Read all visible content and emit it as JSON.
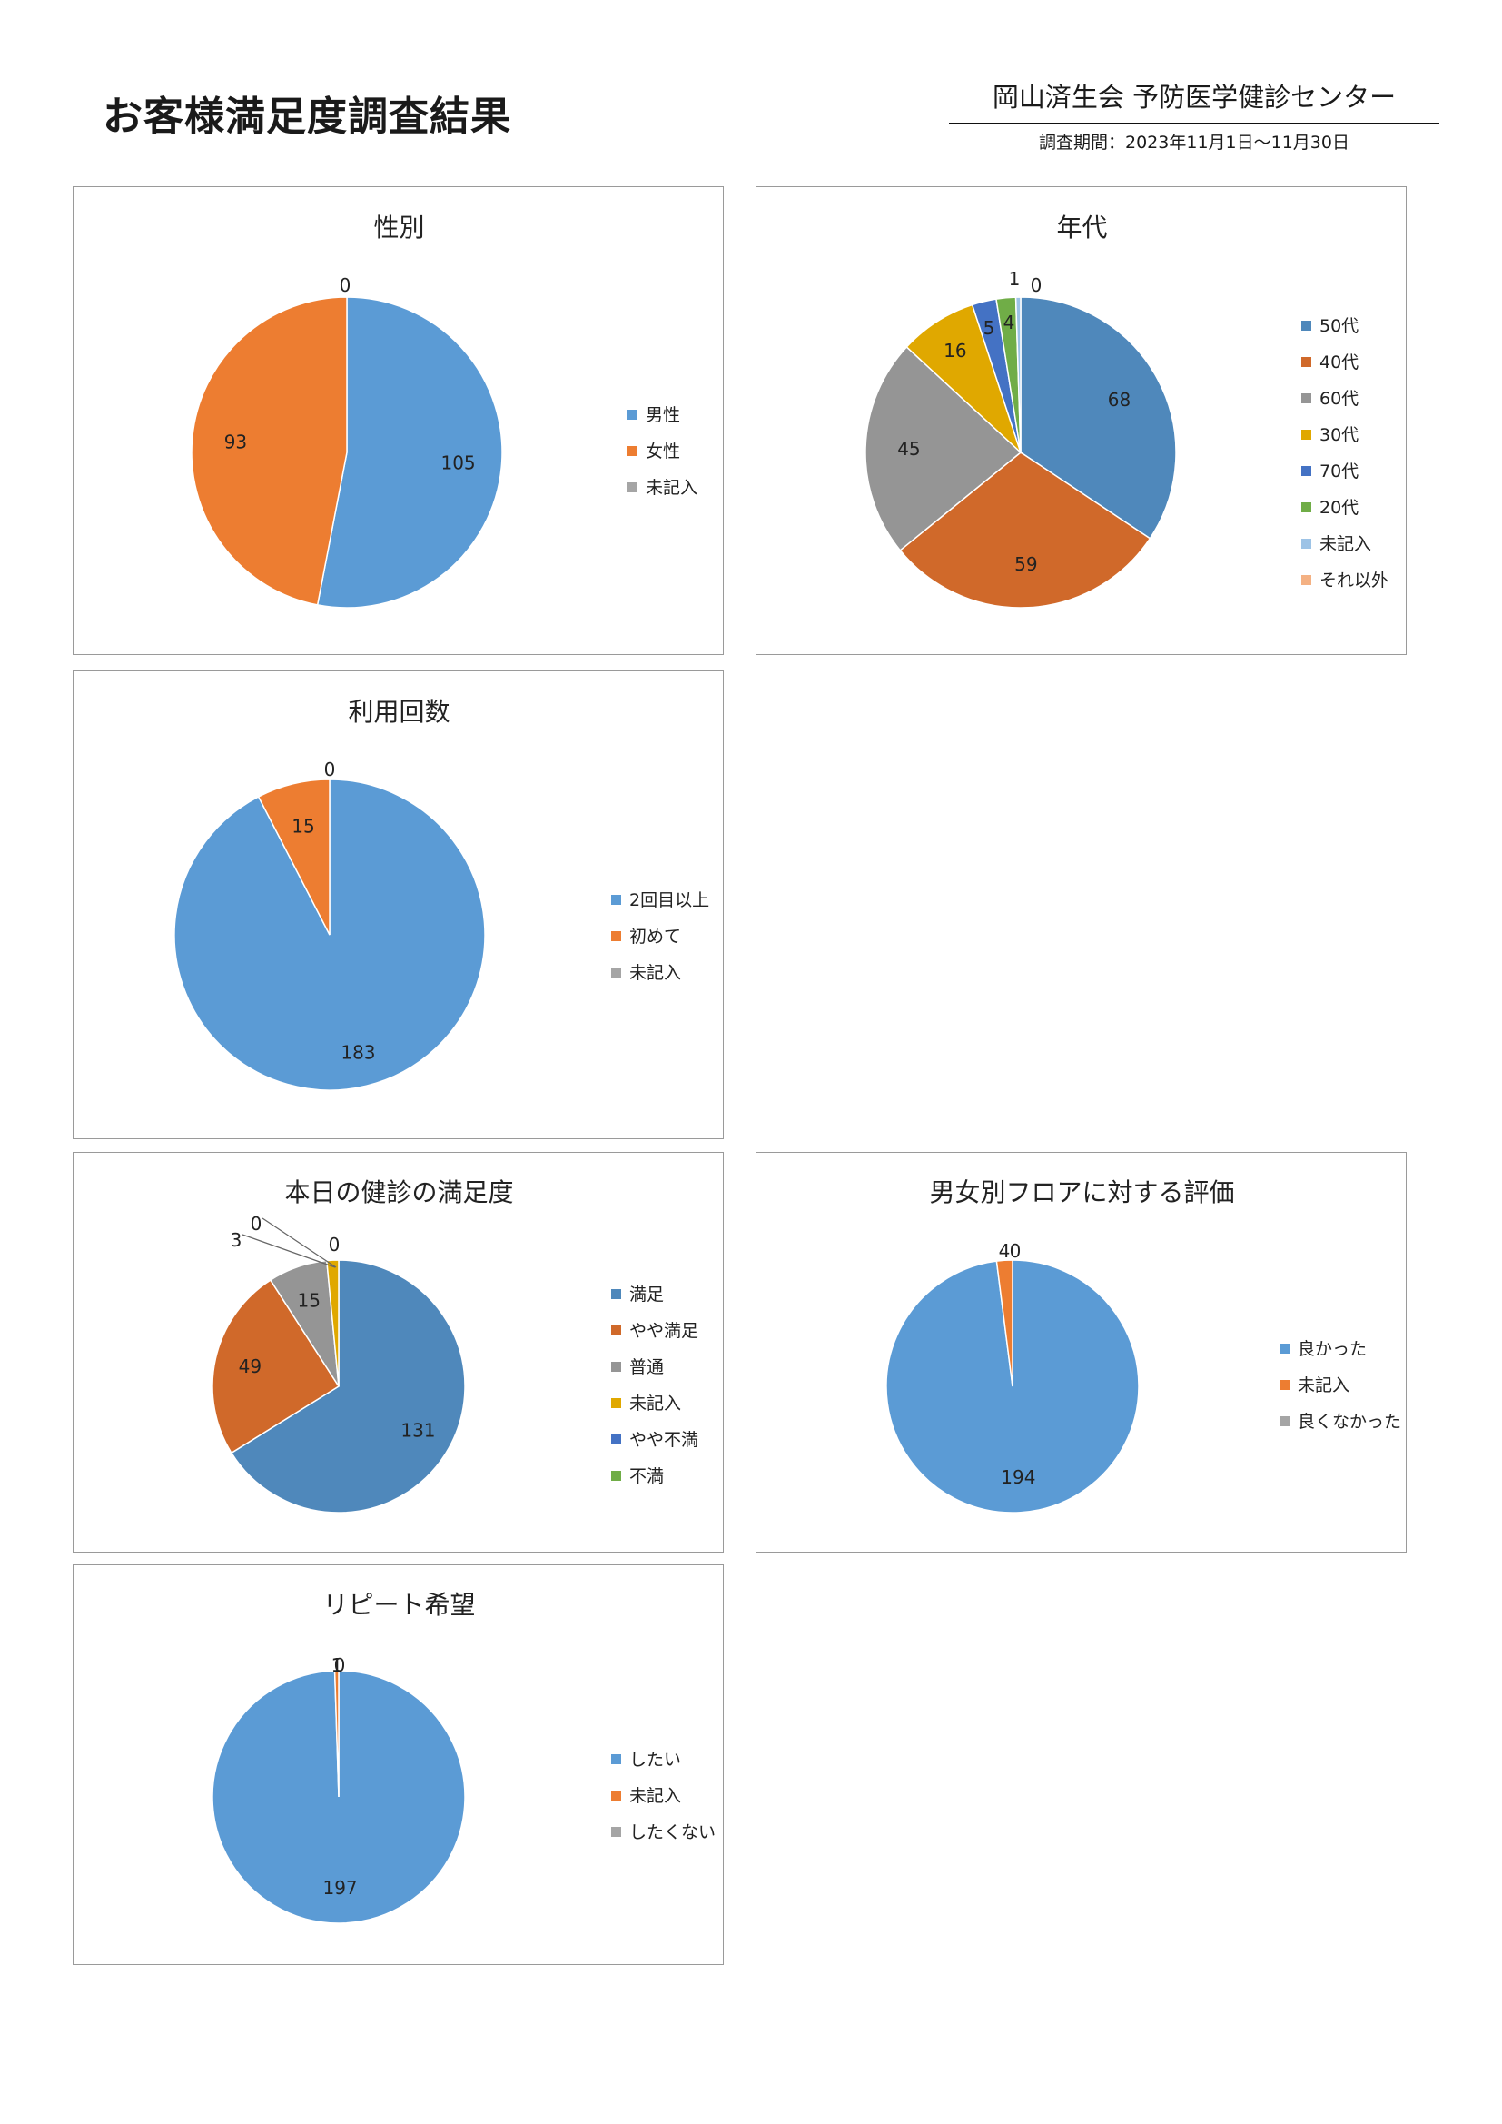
{
  "header": {
    "title": "お客様満足度調査結果",
    "organization": "岡山済生会 予防医学健診センター",
    "period": "調査期間：2023年11月1日～11月30日"
  },
  "colors": {
    "blue": "#5b9bd5",
    "orange": "#ed7d31",
    "gray": "#a5a5a5",
    "gold": "#e0a800",
    "navy": "#4472c4",
    "green": "#70ad47",
    "light_blue": "#9dc3e6",
    "salmon": "#f4b183",
    "steel_blue": "#4f88bb",
    "rust": "#d0692a",
    "mid_gray": "#959595"
  },
  "chart_data": [
    {
      "id": "gender",
      "type": "pie",
      "title": "性別",
      "categories": [
        "男性",
        "女性",
        "未記入"
      ],
      "values": [
        105,
        93,
        0
      ],
      "colors": [
        "#5b9bd5",
        "#ed7d31",
        "#a5a5a5"
      ],
      "legend": "right"
    },
    {
      "id": "age",
      "type": "pie",
      "title": "年代",
      "categories": [
        "50代",
        "40代",
        "60代",
        "30代",
        "70代",
        "20代",
        "未記入",
        "それ以外"
      ],
      "values": [
        68,
        59,
        45,
        16,
        5,
        4,
        1,
        0
      ],
      "colors": [
        "#4f88bb",
        "#d0692a",
        "#959595",
        "#e0a800",
        "#4472c4",
        "#70ad47",
        "#9dc3e6",
        "#f4b183"
      ],
      "legend": "right"
    },
    {
      "id": "visits",
      "type": "pie",
      "title": "利用回数",
      "categories": [
        "2回目以上",
        "初めて",
        "未記入"
      ],
      "values": [
        183,
        15,
        0
      ],
      "colors": [
        "#5b9bd5",
        "#ed7d31",
        "#a5a5a5"
      ],
      "legend": "right"
    },
    {
      "id": "satisfaction",
      "type": "pie",
      "title": "本日の健診の満足度",
      "categories": [
        "満足",
        "やや満足",
        "普通",
        "未記入",
        "やや不満",
        "不満"
      ],
      "values": [
        131,
        49,
        15,
        3,
        0,
        0
      ],
      "colors": [
        "#4f88bb",
        "#d0692a",
        "#959595",
        "#e0a800",
        "#4472c4",
        "#70ad47"
      ],
      "legend": "right"
    },
    {
      "id": "floor",
      "type": "pie",
      "title": "男女別フロアに対する評価",
      "categories": [
        "良かった",
        "未記入",
        "良くなかった"
      ],
      "values": [
        194,
        4,
        0
      ],
      "colors": [
        "#5b9bd5",
        "#ed7d31",
        "#a5a5a5"
      ],
      "legend": "right"
    },
    {
      "id": "repeat",
      "type": "pie",
      "title": "リピート希望",
      "categories": [
        "したい",
        "未記入",
        "したくない"
      ],
      "values": [
        197,
        1,
        0
      ],
      "colors": [
        "#5b9bd5",
        "#ed7d31",
        "#a5a5a5"
      ],
      "legend": "right"
    }
  ]
}
